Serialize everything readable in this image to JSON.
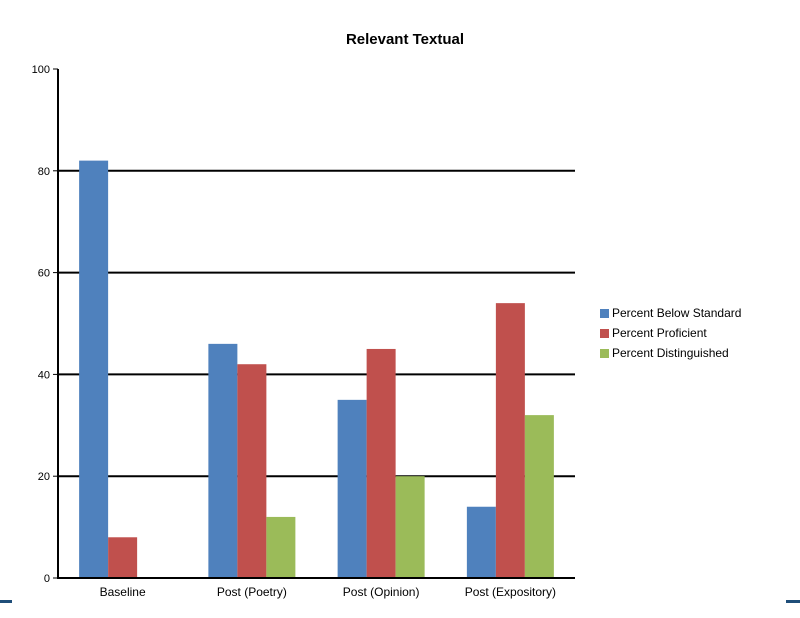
{
  "chart_data": {
    "type": "bar",
    "title": "Relevant Textual",
    "xlabel": "",
    "ylabel": "",
    "categories": [
      "Baseline",
      "Post (Poetry)",
      "Post (Opinion)",
      "Post (Expository)"
    ],
    "series": [
      {
        "name": "Percent Below Standard",
        "color": "#4f81bd",
        "values": [
          82,
          46,
          35,
          14
        ]
      },
      {
        "name": "Percent Proficient",
        "color": "#c0504d",
        "values": [
          8,
          42,
          45,
          54
        ]
      },
      {
        "name": "Percent Distinguished",
        "color": "#9bbb59",
        "values": [
          0,
          12,
          20,
          32
        ]
      }
    ],
    "ylim": [
      0,
      100
    ],
    "yticks": [
      0,
      20,
      40,
      60,
      80,
      100
    ],
    "grid": true,
    "legend_position": "right"
  }
}
